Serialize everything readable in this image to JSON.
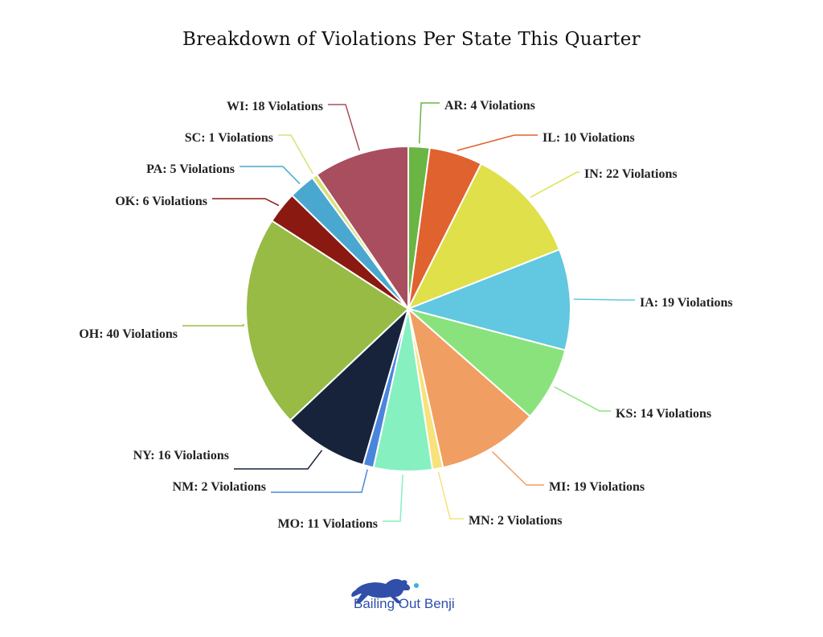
{
  "chart_data": {
    "type": "pie",
    "title": "Breakdown of Violations Per State This Quarter",
    "start_angle_deg": 0,
    "direction": "clockwise",
    "slices": [
      {
        "label": "AR: 4 Violations",
        "value": 4,
        "color": "#6ab544"
      },
      {
        "label": "IL: 10 Violations",
        "value": 10,
        "color": "#e0622f"
      },
      {
        "label": "IN: 22 Violations",
        "value": 22,
        "color": "#dfe04a"
      },
      {
        "label": "IA: 19 Violations",
        "value": 19,
        "color": "#62c7e0"
      },
      {
        "label": "KS: 14 Violations",
        "value": 14,
        "color": "#8ae27c"
      },
      {
        "label": "MI: 19 Violations",
        "value": 19,
        "color": "#f09e62"
      },
      {
        "label": "MN: 2 Violations",
        "value": 2,
        "color": "#f7e27b"
      },
      {
        "label": "MO: 11 Violations",
        "value": 11,
        "color": "#86f0c0"
      },
      {
        "label": "NM: 2 Violations",
        "value": 2,
        "color": "#4a85dd"
      },
      {
        "label": "NY: 16 Violations",
        "value": 16,
        "color": "#16233b"
      },
      {
        "label": "OH: 40 Violations",
        "value": 40,
        "color": "#97bb45"
      },
      {
        "label": "OK: 6 Violations",
        "value": 6,
        "color": "#8a1911"
      },
      {
        "label": "PA: 5 Violations",
        "value": 5,
        "color": "#4aa8d0"
      },
      {
        "label": "SC: 1 Violations",
        "value": 1,
        "color": "#d7e07a"
      },
      {
        "label": "WI: 18 Violations",
        "value": 18,
        "color": "#a84e5e"
      }
    ]
  },
  "branding": {
    "name": "Bailing Out Benji",
    "logo_icon": "running-dog-icon",
    "color": "#2f4fa8"
  }
}
